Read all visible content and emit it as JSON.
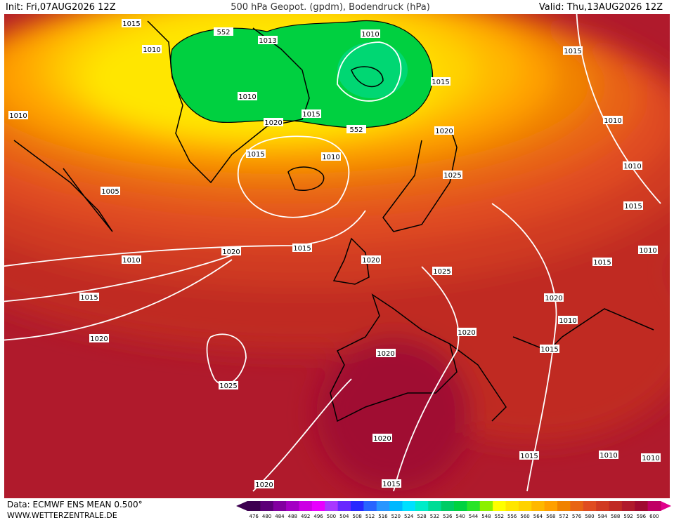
{
  "header": {
    "init": "Init: Fri,07AUG2026 12Z",
    "title": "500 hPa Geopot. (gpdm), Bodendruck (hPa)",
    "valid": "Valid: Thu,13AUG2026 12Z"
  },
  "isobar_labels": [
    "1015",
    "1010",
    "552",
    "1013",
    "1010",
    "1015",
    "1015",
    "1010",
    "1010",
    "1015",
    "1020",
    "552",
    "1020",
    "1010",
    "1015",
    "1010",
    "1010",
    "1025",
    "1005",
    "1015",
    "1020",
    "1015",
    "1010",
    "1010",
    "1020",
    "1015",
    "1025",
    "1015",
    "1020",
    "1010",
    "1020",
    "1020",
    "1015",
    "1020",
    "1025",
    "1020",
    "1010",
    "1015",
    "1010",
    "1020",
    "1015"
  ],
  "colorbar": {
    "values": [
      476,
      480,
      484,
      488,
      492,
      496,
      500,
      504,
      508,
      512,
      516,
      520,
      524,
      528,
      532,
      536,
      540,
      544,
      548,
      552,
      556,
      560,
      564,
      568,
      572,
      576,
      580,
      584,
      588,
      592,
      596,
      600
    ],
    "colors": [
      "#3c0050",
      "#5c0078",
      "#8200a0",
      "#a400c4",
      "#cc00e4",
      "#e800ff",
      "#a838ff",
      "#6828ff",
      "#2828ff",
      "#2864ff",
      "#2896ff",
      "#00b8ff",
      "#00e0ff",
      "#00ecc8",
      "#00dc96",
      "#00cc64",
      "#00d240",
      "#28e428",
      "#8cf000",
      "#ffff00",
      "#ffe600",
      "#ffd200",
      "#ffb800",
      "#ffa000",
      "#f08200",
      "#e86414",
      "#e04c20",
      "#d03a22",
      "#c02a24",
      "#b01a2c",
      "#a00a30",
      "#c00064"
    ]
  },
  "footer": {
    "source": "Data: ECMWF ENS MEAN 0.500°",
    "site": "WWW.WETTERZENTRALE.DE"
  }
}
